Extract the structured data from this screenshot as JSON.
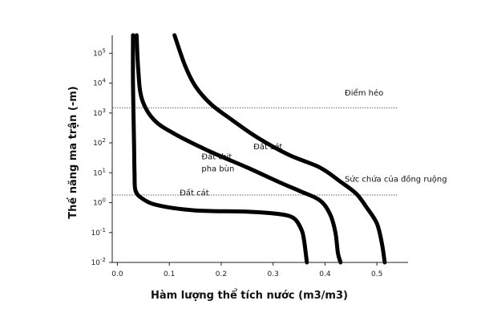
{
  "chart_data": {
    "type": "line",
    "xlabel": "Hàm lượng thể tích nước (m3/m3)",
    "ylabel": "Thế năng ma trận (-m)",
    "xlim": [
      -0.01,
      0.56
    ],
    "ylim_log10": [
      -2,
      5.6
    ],
    "y_scale": "log",
    "x_ticks": [
      "0.0",
      "0.1",
      "0.2",
      "0.3",
      "0.4",
      "0.5"
    ],
    "x_tick_values": [
      0.0,
      0.1,
      0.2,
      0.3,
      0.4,
      0.5
    ],
    "y_tick_base": "10",
    "y_tick_exponents": [
      "-2",
      "-1",
      "0",
      "1",
      "2",
      "3",
      "4",
      "5"
    ],
    "y_tick_values": [
      -2,
      -1,
      0,
      1,
      2,
      3,
      4,
      5
    ],
    "reference_lines": [
      {
        "label": "Điểm héo",
        "y": 1500
      },
      {
        "label": "Sức chứa của đồng ruộng",
        "y": 1.8
      }
    ],
    "series": [
      {
        "name": "Đất cát",
        "points": [
          [
            0.03,
            400000
          ],
          [
            0.03,
            10000
          ],
          [
            0.032,
            100
          ],
          [
            0.033,
            10
          ],
          [
            0.035,
            2.5
          ],
          [
            0.05,
            1.3
          ],
          [
            0.08,
            0.8
          ],
          [
            0.15,
            0.55
          ],
          [
            0.25,
            0.5
          ],
          [
            0.31,
            0.42
          ],
          [
            0.34,
            0.3
          ],
          [
            0.355,
            0.12
          ],
          [
            0.36,
            0.05
          ],
          [
            0.365,
            0.01
          ]
        ]
      },
      {
        "name": "Đất thịt pha bùn",
        "points": [
          [
            0.037,
            400000
          ],
          [
            0.04,
            30000
          ],
          [
            0.047,
            3000
          ],
          [
            0.07,
            600
          ],
          [
            0.11,
            200
          ],
          [
            0.18,
            50
          ],
          [
            0.25,
            15
          ],
          [
            0.31,
            5
          ],
          [
            0.35,
            2.5
          ],
          [
            0.39,
            1.2
          ],
          [
            0.41,
            0.4
          ],
          [
            0.42,
            0.1
          ],
          [
            0.425,
            0.02
          ],
          [
            0.43,
            0.01
          ]
        ]
      },
      {
        "name": "Đất sét",
        "points": [
          [
            0.11,
            400000
          ],
          [
            0.13,
            40000
          ],
          [
            0.15,
            8000
          ],
          [
            0.18,
            2000
          ],
          [
            0.22,
            600
          ],
          [
            0.27,
            150
          ],
          [
            0.33,
            40
          ],
          [
            0.39,
            15
          ],
          [
            0.43,
            5
          ],
          [
            0.46,
            2
          ],
          [
            0.48,
            0.7
          ],
          [
            0.5,
            0.2
          ],
          [
            0.51,
            0.04
          ],
          [
            0.515,
            0.01
          ]
        ]
      }
    ],
    "annotations": [
      {
        "text": "Điểm héo",
        "x": 0.438,
        "y": 3800
      },
      {
        "text": "Đất sét",
        "x": 0.262,
        "y": 62
      },
      {
        "text": "Đất thịt",
        "x": 0.162,
        "y": 28
      },
      {
        "text": "pha bùn",
        "x": 0.162,
        "y": 11
      },
      {
        "text": "Sức chứa của đồng ruộng",
        "x": 0.438,
        "y": 5
      },
      {
        "text": "Đất cát",
        "x": 0.12,
        "y": 1.75
      }
    ]
  }
}
